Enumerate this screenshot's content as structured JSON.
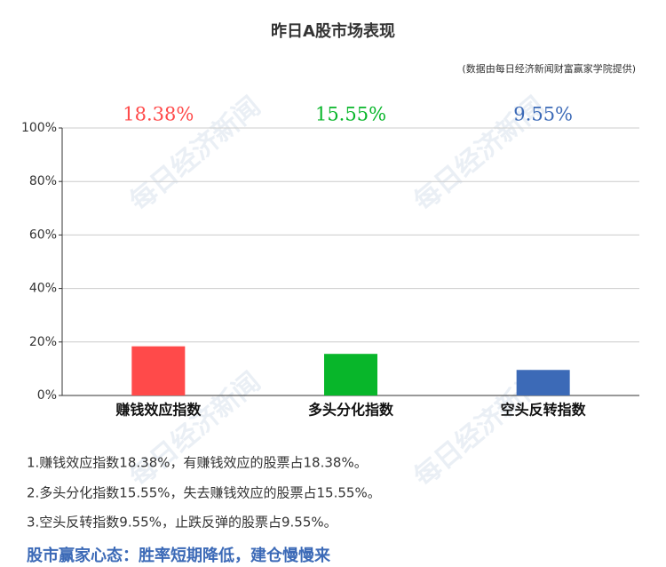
{
  "chart_data": {
    "type": "bar",
    "title": "昨日A股市场表现",
    "subtitle": "(数据由每日经济新闻财富赢家学院提供)",
    "categories": [
      "赚钱效应指数",
      "多头分化指数",
      "空头反转指数"
    ],
    "values": [
      18.38,
      15.55,
      9.55
    ],
    "value_labels": [
      "18.38%",
      "15.55%",
      "9.55%"
    ],
    "colors": [
      "#ff4a4a",
      "#08b62a",
      "#3c6ab7"
    ],
    "ylim": [
      0,
      100
    ],
    "yticks": [
      {
        "value": 0,
        "label": "0%"
      },
      {
        "value": 20,
        "label": "20%"
      },
      {
        "value": 40,
        "label": "40%"
      },
      {
        "value": 60,
        "label": "60%"
      },
      {
        "value": 80,
        "label": "80%"
      },
      {
        "value": 100,
        "label": "100%"
      }
    ],
    "grid": true
  },
  "notes": [
    "1.赚钱效应指数18.38%，有赚钱效应的股票占18.38%。",
    "2.多头分化指数15.55%，失去赚钱效应的股票占15.55%。",
    "3.空头反转指数9.55%，止跌反弹的股票占9.55%。"
  ],
  "headline": "股市赢家心态：胜率短期降低，建仓慢慢来",
  "watermark": "每日经济新闻"
}
